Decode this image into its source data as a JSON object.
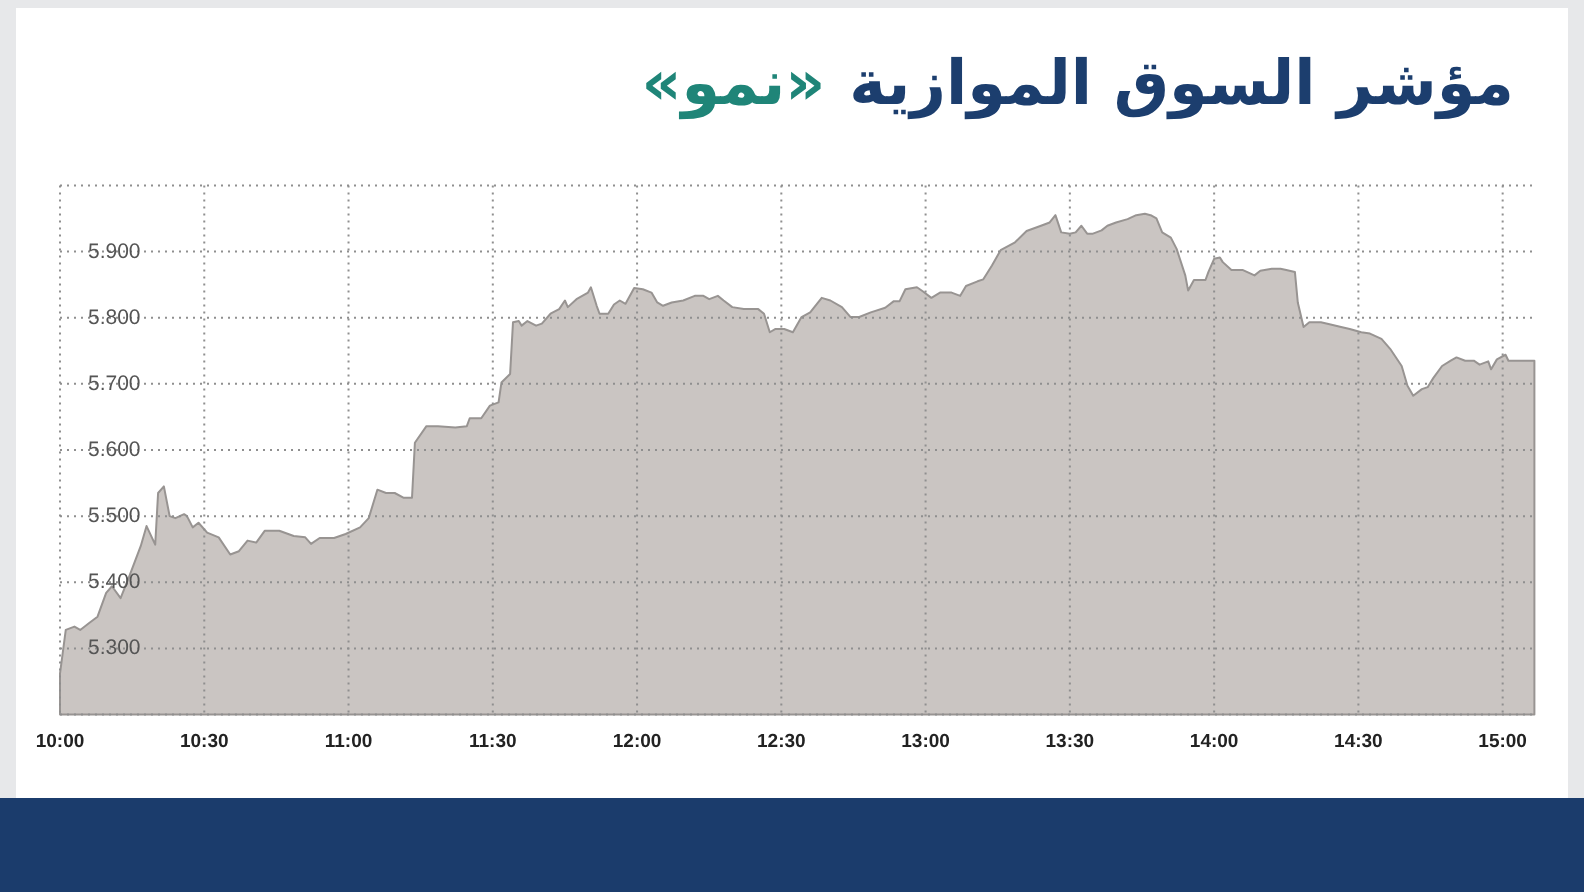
{
  "chart_data": {
    "type": "area",
    "title": "مؤشر السوق الموازية",
    "subtitle": "«نمو»",
    "color": "#cac5c2",
    "x": [
      10.0,
      10.02,
      10.05,
      10.07,
      10.1,
      10.13,
      10.16,
      10.18,
      10.21,
      10.24,
      10.28,
      10.3,
      10.33,
      10.34,
      10.36,
      10.38,
      10.4,
      10.43,
      10.44,
      10.46,
      10.48,
      10.51,
      10.55,
      10.59,
      10.62,
      10.65,
      10.68,
      10.71,
      10.76,
      10.81,
      10.85,
      10.87,
      10.9,
      10.95,
      10.99,
      11.04,
      11.07,
      11.1,
      11.13,
      11.16,
      11.19,
      11.22,
      11.23,
      11.27,
      11.31,
      11.37,
      11.41,
      11.42,
      11.46,
      11.49,
      11.52,
      11.53,
      11.56,
      11.57,
      11.59,
      11.6,
      11.62,
      11.65,
      11.67,
      11.7,
      11.73,
      11.75,
      11.76,
      11.79,
      11.83,
      11.84,
      11.86,
      11.87,
      11.9,
      11.92,
      11.94,
      11.96,
      11.99,
      12.02,
      12.05,
      12.07,
      12.09,
      12.12,
      12.16,
      12.2,
      12.23,
      12.25,
      12.28,
      12.3,
      12.33,
      12.37,
      12.42,
      12.44,
      12.46,
      12.48,
      12.51,
      12.54,
      12.57,
      12.6,
      12.64,
      12.67,
      12.71,
      12.74,
      12.77,
      12.81,
      12.86,
      12.89,
      12.91,
      12.93,
      12.97,
      12.99,
      13.02,
      13.05,
      13.09,
      13.12,
      13.14,
      13.18,
      13.2,
      13.23,
      13.26,
      13.31,
      13.35,
      13.4,
      13.43,
      13.45,
      13.47,
      13.5,
      13.52,
      13.54,
      13.56,
      13.58,
      13.61,
      13.63,
      13.66,
      13.7,
      13.73,
      13.76,
      13.78,
      13.8,
      13.82,
      13.85,
      13.87,
      13.9,
      13.91,
      13.93,
      13.97,
      13.98,
      14.0,
      14.02,
      14.03,
      14.06,
      14.1,
      14.14,
      14.16,
      14.2,
      14.23,
      14.25,
      14.28,
      14.29,
      14.31,
      14.33,
      14.37,
      14.4,
      14.44,
      14.47,
      14.51,
      14.54,
      14.58,
      14.61,
      14.65,
      14.67,
      14.69,
      14.72,
      14.74,
      14.76,
      14.79,
      14.82,
      14.84,
      14.87,
      14.9,
      14.92,
      14.95,
      14.96,
      14.98,
      15.01,
      15.02,
      15.05,
      15.11
    ],
    "values": [
      5.262,
      5.328,
      5.333,
      5.328,
      5.338,
      5.348,
      5.384,
      5.394,
      5.376,
      5.409,
      5.455,
      5.485,
      5.457,
      5.535,
      5.545,
      5.5,
      5.497,
      5.503,
      5.5,
      5.483,
      5.49,
      5.475,
      5.468,
      5.442,
      5.447,
      5.463,
      5.46,
      5.478,
      5.478,
      5.47,
      5.468,
      5.458,
      5.467,
      5.467,
      5.473,
      5.483,
      5.497,
      5.54,
      5.535,
      5.535,
      5.528,
      5.528,
      5.611,
      5.636,
      5.636,
      5.634,
      5.636,
      5.648,
      5.648,
      5.667,
      5.672,
      5.702,
      5.715,
      5.793,
      5.795,
      5.788,
      5.795,
      5.788,
      5.791,
      5.806,
      5.813,
      5.826,
      5.816,
      5.828,
      5.838,
      5.846,
      5.818,
      5.806,
      5.806,
      5.82,
      5.826,
      5.821,
      5.845,
      5.843,
      5.838,
      5.823,
      5.818,
      5.823,
      5.826,
      5.833,
      5.833,
      5.828,
      5.833,
      5.826,
      5.816,
      5.813,
      5.813,
      5.806,
      5.778,
      5.783,
      5.783,
      5.778,
      5.801,
      5.808,
      5.83,
      5.826,
      5.816,
      5.801,
      5.801,
      5.808,
      5.815,
      5.825,
      5.825,
      5.843,
      5.846,
      5.84,
      5.83,
      5.838,
      5.838,
      5.833,
      5.848,
      5.855,
      5.858,
      5.879,
      5.902,
      5.914,
      5.931,
      5.939,
      5.944,
      5.955,
      5.929,
      5.927,
      5.929,
      5.939,
      5.927,
      5.927,
      5.932,
      5.939,
      5.944,
      5.949,
      5.955,
      5.957,
      5.955,
      5.95,
      5.929,
      5.921,
      5.904,
      5.864,
      5.841,
      5.857,
      5.857,
      5.869,
      5.889,
      5.891,
      5.884,
      5.872,
      5.872,
      5.864,
      5.871,
      5.874,
      5.874,
      5.872,
      5.869,
      5.823,
      5.786,
      5.793,
      5.793,
      5.79,
      5.786,
      5.783,
      5.778,
      5.776,
      5.768,
      5.753,
      5.727,
      5.697,
      5.682,
      5.692,
      5.695,
      5.709,
      5.727,
      5.735,
      5.74,
      5.735,
      5.735,
      5.729,
      5.734,
      5.722,
      5.737,
      5.744,
      5.735,
      5.735,
      5.735
    ],
    "xlim": [
      10,
      15.11
    ],
    "xticks": [
      {
        "value": 10,
        "label": "10:00"
      },
      {
        "value": 10.5,
        "label": "10:30"
      },
      {
        "value": 11,
        "label": "11:00"
      },
      {
        "value": 11.5,
        "label": "11:30"
      },
      {
        "value": 12,
        "label": "12:00"
      },
      {
        "value": 12.5,
        "label": "12:30"
      },
      {
        "value": 13,
        "label": "13:00"
      },
      {
        "value": 13.5,
        "label": "13:30"
      },
      {
        "value": 14,
        "label": "14:00"
      },
      {
        "value": 14.5,
        "label": "14:30"
      },
      {
        "value": 15,
        "label": "15:00"
      }
    ],
    "ylim": [
      5.2,
      6.0
    ],
    "yticks": [
      {
        "value": 5.2,
        "label": null
      },
      {
        "value": 5.3,
        "label": "5.300"
      },
      {
        "value": 5.4,
        "label": "5.400"
      },
      {
        "value": 5.5,
        "label": "5.500"
      },
      {
        "value": 5.6,
        "label": "5.600"
      },
      {
        "value": 5.7,
        "label": "5.700"
      },
      {
        "value": 5.8,
        "label": "5.800"
      },
      {
        "value": 5.9,
        "label": "5.900"
      },
      {
        "value": 6.0,
        "label": null
      }
    ],
    "grid": true
  }
}
